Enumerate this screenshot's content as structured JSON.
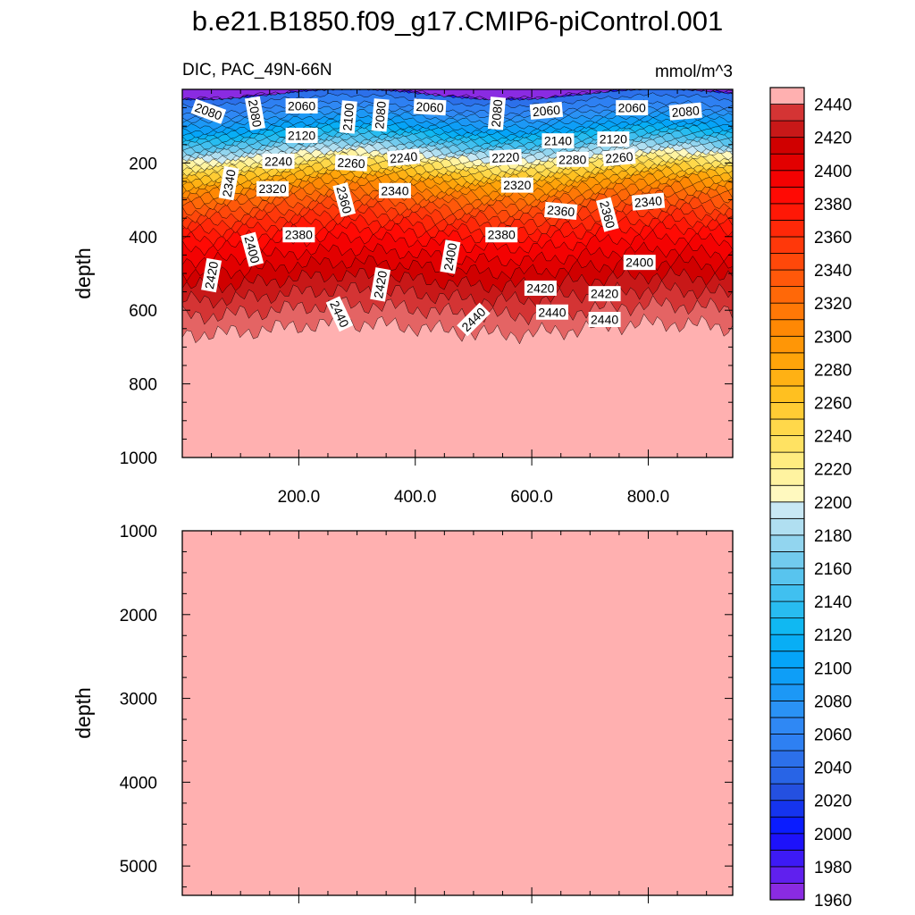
{
  "title": "b.e21.B1850.f09_g17.CMIP6-piControl.001",
  "chart_data": {
    "type": "heatmap",
    "variable_label": "DIC, PAC_49N-66N",
    "units": "mmol/m^3",
    "xlim": [
      0,
      945
    ],
    "x_tick_labels": [
      "200.0",
      "400.0",
      "600.0",
      "800.0"
    ],
    "x_tick_values": [
      200,
      400,
      600,
      800
    ],
    "colorbar": {
      "levels": [
        1960,
        1970,
        1980,
        1990,
        2000,
        2010,
        2020,
        2030,
        2040,
        2050,
        2060,
        2070,
        2080,
        2090,
        2100,
        2110,
        2120,
        2130,
        2140,
        2150,
        2160,
        2170,
        2180,
        2190,
        2200,
        2210,
        2220,
        2230,
        2240,
        2250,
        2260,
        2270,
        2280,
        2290,
        2300,
        2310,
        2320,
        2330,
        2340,
        2350,
        2360,
        2370,
        2380,
        2390,
        2400,
        2410,
        2420,
        2430,
        2440,
        2450
      ],
      "labels": [
        "1960",
        "1980",
        "2000",
        "2020",
        "2040",
        "2060",
        "2080",
        "2100",
        "2120",
        "2140",
        "2160",
        "2180",
        "2200",
        "2220",
        "2240",
        "2260",
        "2280",
        "2300",
        "2320",
        "2340",
        "2360",
        "2380",
        "2400",
        "2420",
        "2440"
      ]
    },
    "panels": [
      {
        "ylabel": "depth",
        "ylim": [
          0,
          1000
        ],
        "y_tick_labels": [
          "200",
          "400",
          "600",
          "800",
          "1000"
        ],
        "y_tick_values": [
          200,
          400,
          600,
          800,
          1000
        ],
        "depth_profile": [
          [
            10,
            2040
          ],
          [
            50,
            2060
          ],
          [
            100,
            2100
          ],
          [
            150,
            2160
          ],
          [
            200,
            2230
          ],
          [
            250,
            2290
          ],
          [
            300,
            2330
          ],
          [
            350,
            2360
          ],
          [
            400,
            2385
          ],
          [
            450,
            2400
          ],
          [
            500,
            2415
          ],
          [
            550,
            2428
          ],
          [
            600,
            2440
          ],
          [
            650,
            2450
          ],
          [
            1000,
            2455
          ]
        ],
        "contour_labels": [
          {
            "text": "2080",
            "x": 45,
            "y": 60,
            "rot": 20
          },
          {
            "text": "2080",
            "x": 125,
            "y": 65,
            "rot": 80
          },
          {
            "text": "2060",
            "x": 205,
            "y": 45,
            "rot": 0
          },
          {
            "text": "2100",
            "x": 285,
            "y": 75,
            "rot": -85
          },
          {
            "text": "2080",
            "x": 340,
            "y": 70,
            "rot": -85
          },
          {
            "text": "2060",
            "x": 425,
            "y": 48,
            "rot": 3
          },
          {
            "text": "2080",
            "x": 540,
            "y": 65,
            "rot": -85
          },
          {
            "text": "2060",
            "x": 625,
            "y": 58,
            "rot": -5
          },
          {
            "text": "2060",
            "x": 772,
            "y": 50,
            "rot": 0
          },
          {
            "text": "2080",
            "x": 864,
            "y": 60,
            "rot": -5
          },
          {
            "text": "2120",
            "x": 205,
            "y": 125,
            "rot": 0
          },
          {
            "text": "2140",
            "x": 645,
            "y": 140,
            "rot": 0
          },
          {
            "text": "2120",
            "x": 740,
            "y": 135,
            "rot": 0
          },
          {
            "text": "2220",
            "x": 555,
            "y": 185,
            "rot": -3
          },
          {
            "text": "2240",
            "x": 165,
            "y": 195,
            "rot": 0
          },
          {
            "text": "2260",
            "x": 290,
            "y": 200,
            "rot": 3
          },
          {
            "text": "2240",
            "x": 380,
            "y": 185,
            "rot": -5
          },
          {
            "text": "2280",
            "x": 670,
            "y": 190,
            "rot": 0
          },
          {
            "text": "2260",
            "x": 750,
            "y": 185,
            "rot": -5
          },
          {
            "text": "2340",
            "x": 80,
            "y": 255,
            "rot": -80
          },
          {
            "text": "2320",
            "x": 155,
            "y": 270,
            "rot": 0
          },
          {
            "text": "2360",
            "x": 278,
            "y": 300,
            "rot": 75
          },
          {
            "text": "2340",
            "x": 365,
            "y": 275,
            "rot": 0
          },
          {
            "text": "2320",
            "x": 575,
            "y": 260,
            "rot": 0
          },
          {
            "text": "2360",
            "x": 650,
            "y": 330,
            "rot": 5
          },
          {
            "text": "2360",
            "x": 730,
            "y": 340,
            "rot": 75
          },
          {
            "text": "2340",
            "x": 800,
            "y": 305,
            "rot": -5
          },
          {
            "text": "2380",
            "x": 200,
            "y": 395,
            "rot": 0
          },
          {
            "text": "2380",
            "x": 548,
            "y": 395,
            "rot": 0
          },
          {
            "text": "2400",
            "x": 120,
            "y": 435,
            "rot": 75
          },
          {
            "text": "2400",
            "x": 460,
            "y": 455,
            "rot": -80
          },
          {
            "text": "2400",
            "x": 785,
            "y": 470,
            "rot": 0
          },
          {
            "text": "2420",
            "x": 50,
            "y": 505,
            "rot": -80
          },
          {
            "text": "2420",
            "x": 340,
            "y": 530,
            "rot": -80
          },
          {
            "text": "2420",
            "x": 615,
            "y": 540,
            "rot": 0
          },
          {
            "text": "2420",
            "x": 725,
            "y": 555,
            "rot": 0
          },
          {
            "text": "2440",
            "x": 270,
            "y": 610,
            "rot": 65
          },
          {
            "text": "2440",
            "x": 500,
            "y": 625,
            "rot": -45
          },
          {
            "text": "2440",
            "x": 635,
            "y": 605,
            "rot": 0
          },
          {
            "text": "2440",
            "x": 725,
            "y": 625,
            "rot": 0
          }
        ]
      },
      {
        "ylabel": "depth",
        "ylim": [
          1000,
          5350
        ],
        "y_tick_labels": [
          "1000",
          "2000",
          "3000",
          "4000",
          "5000"
        ],
        "y_tick_values": [
          1000,
          2000,
          3000,
          4000,
          5000
        ],
        "uniform_value": 2455
      }
    ]
  }
}
